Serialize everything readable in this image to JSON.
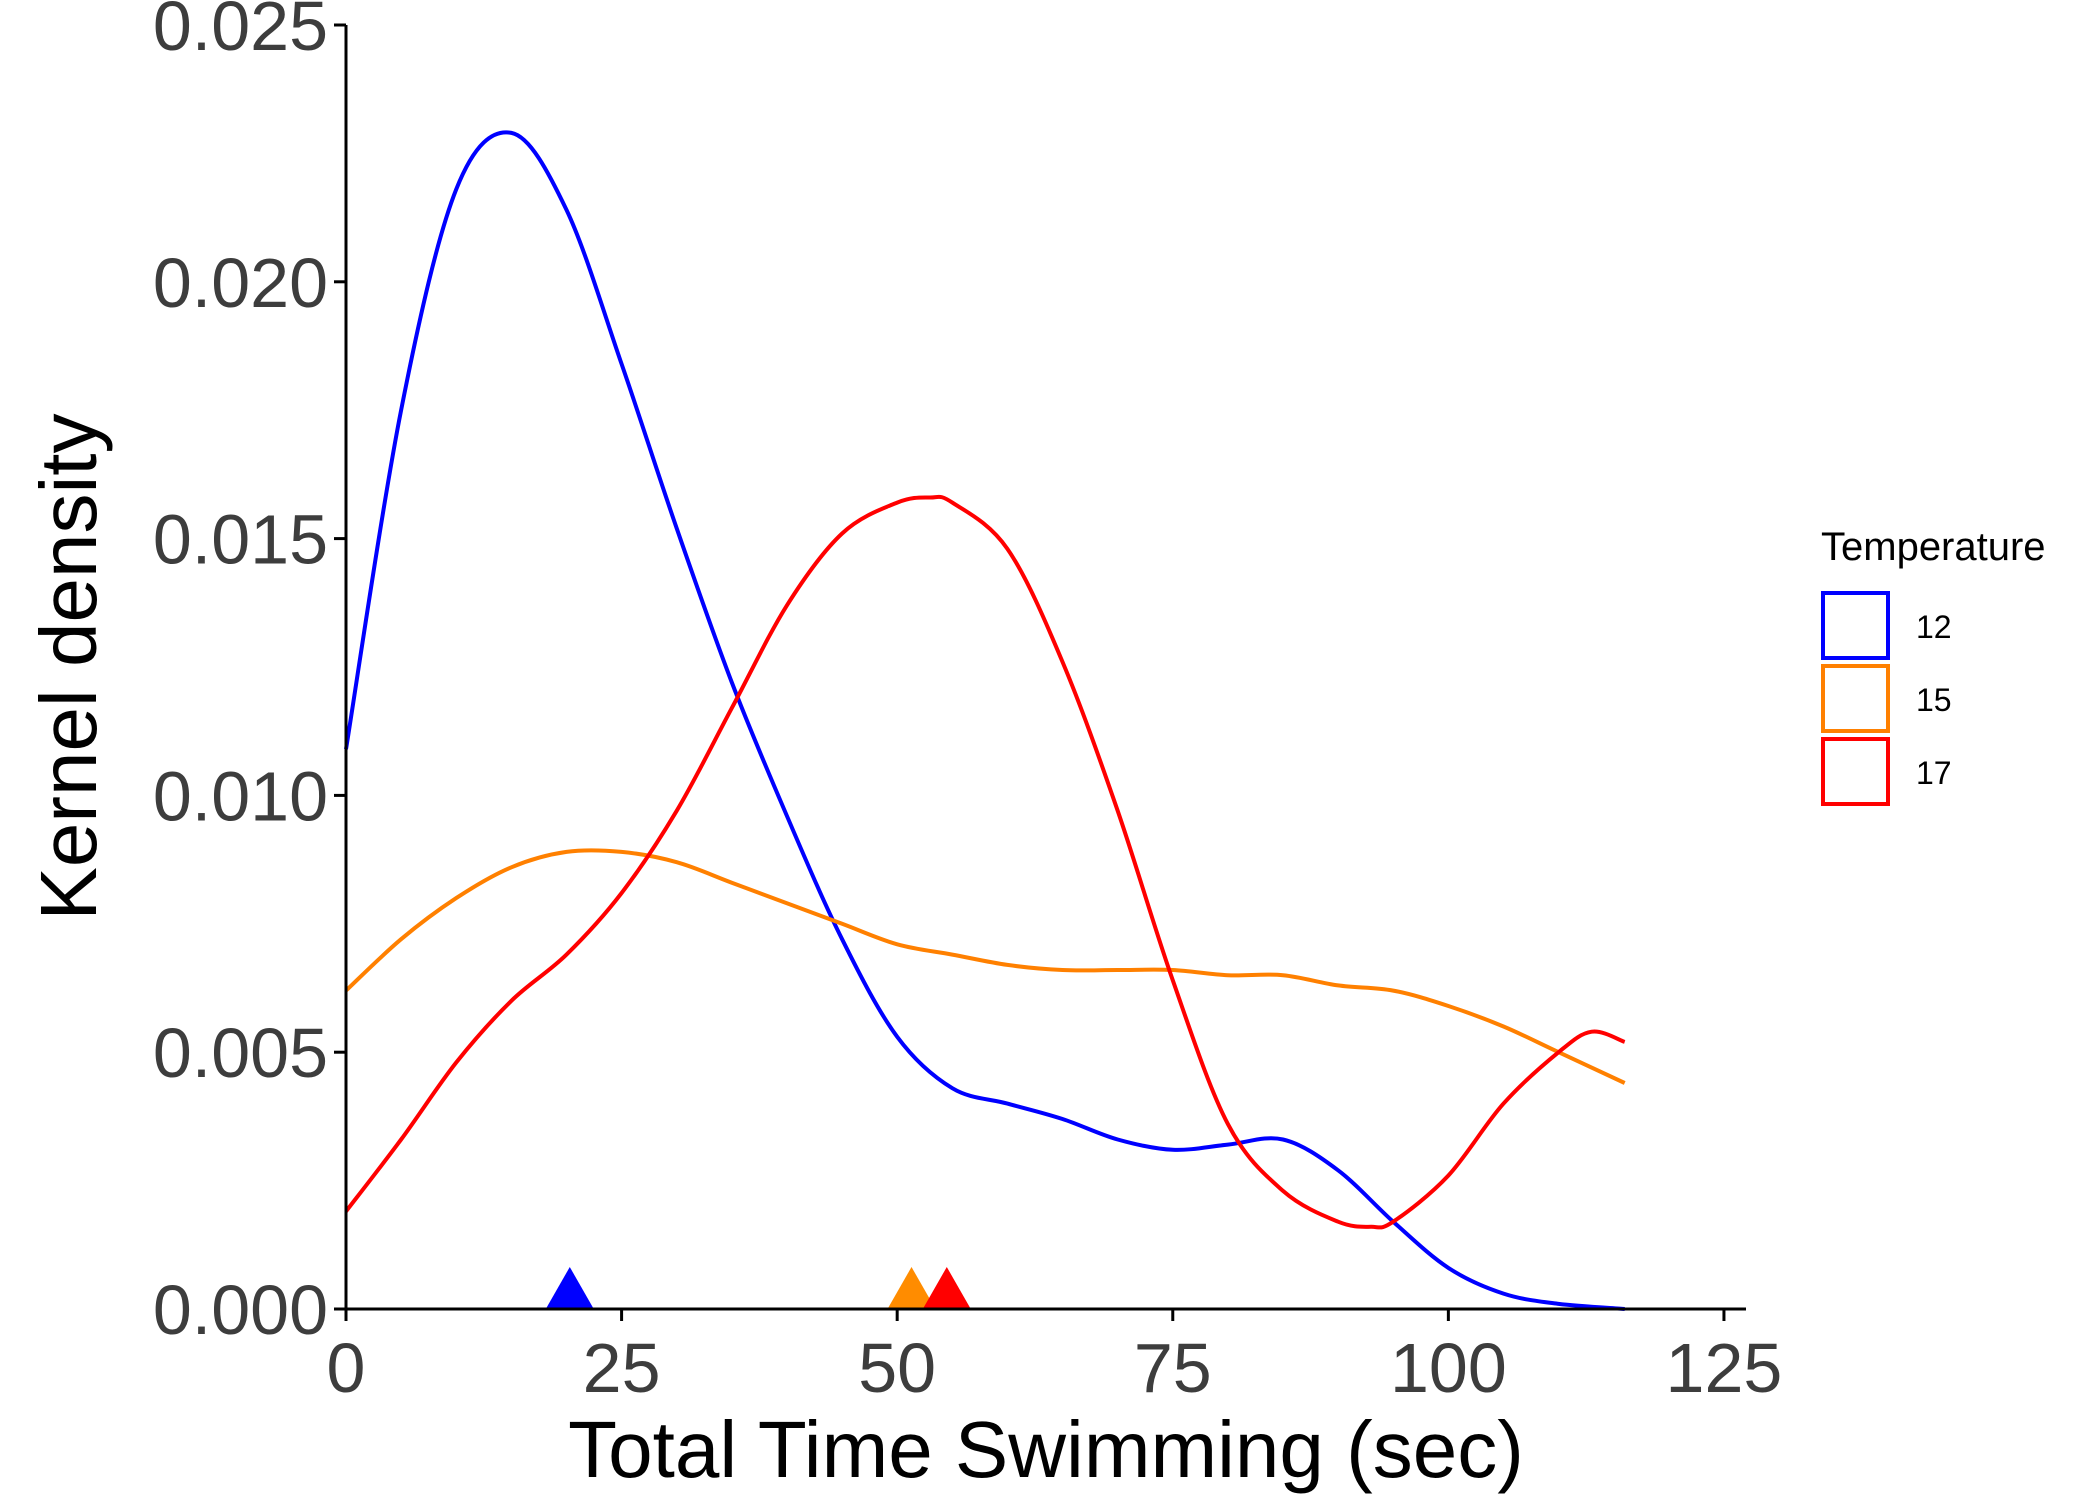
{
  "chart_data": {
    "type": "line",
    "title": "",
    "xlabel": "Total Time Swimming (sec)",
    "ylabel": "Kernel density",
    "xlim": [
      0,
      127
    ],
    "ylim": [
      0,
      0.025
    ],
    "xticks": [
      0,
      25,
      50,
      75,
      100,
      125
    ],
    "xtick_labels": [
      "0",
      "25",
      "50",
      "75",
      "100",
      "125"
    ],
    "yticks": [
      0,
      0.005,
      0.01,
      0.015,
      0.02,
      0.025
    ],
    "ytick_labels": [
      "0.000",
      "0.005",
      "0.010",
      "0.015",
      "0.020",
      "0.025"
    ],
    "grid": false,
    "legend": {
      "title": "Temperature",
      "placement": "right"
    },
    "series": [
      {
        "name": "12",
        "color": "#0000ff",
        "x": [
          0,
          5,
          10,
          15,
          20,
          25,
          30,
          35,
          40,
          45,
          50,
          55,
          60,
          65,
          70,
          75,
          80,
          85,
          90,
          95,
          100,
          105,
          110,
          116
        ],
        "y": [
          0.0109,
          0.0175,
          0.0218,
          0.0229,
          0.0214,
          0.0184,
          0.0152,
          0.0122,
          0.0096,
          0.0072,
          0.0053,
          0.0043,
          0.004,
          0.0037,
          0.0033,
          0.0031,
          0.0032,
          0.0033,
          0.0027,
          0.0017,
          0.0008,
          0.0003,
          0.0001,
          0.0
        ]
      },
      {
        "name": "15",
        "color": "#ff8000",
        "x": [
          0,
          5,
          10,
          15,
          20,
          25,
          30,
          35,
          40,
          45,
          50,
          55,
          60,
          65,
          70,
          75,
          80,
          85,
          90,
          95,
          100,
          105,
          110,
          116
        ],
        "y": [
          0.0062,
          0.0072,
          0.008,
          0.0086,
          0.0089,
          0.0089,
          0.0087,
          0.0083,
          0.0079,
          0.0075,
          0.0071,
          0.0069,
          0.0067,
          0.0066,
          0.0066,
          0.0066,
          0.0065,
          0.0065,
          0.0063,
          0.0062,
          0.0059,
          0.0055,
          0.005,
          0.0044
        ]
      },
      {
        "name": "17",
        "color": "#ff0000",
        "x": [
          0,
          5,
          10,
          15,
          20,
          25,
          30,
          35,
          40,
          45,
          50,
          53,
          55,
          60,
          65,
          70,
          75,
          80,
          85,
          90,
          93,
          95,
          100,
          105,
          110,
          113,
          116
        ],
        "y": [
          0.0019,
          0.0033,
          0.0048,
          0.006,
          0.0069,
          0.0081,
          0.0097,
          0.0117,
          0.0137,
          0.0151,
          0.0157,
          0.0158,
          0.0157,
          0.0148,
          0.0126,
          0.0097,
          0.0064,
          0.0036,
          0.0023,
          0.0017,
          0.0016,
          0.0017,
          0.0026,
          0.004,
          0.005,
          0.0054,
          0.0052
        ]
      }
    ],
    "markers": [
      {
        "series": "12",
        "x": 20.3,
        "color": "#0000ff"
      },
      {
        "series": "15",
        "x": 51.3,
        "color": "#ff8c00"
      },
      {
        "series": "17",
        "x": 54.5,
        "color": "#ff0000"
      }
    ]
  }
}
